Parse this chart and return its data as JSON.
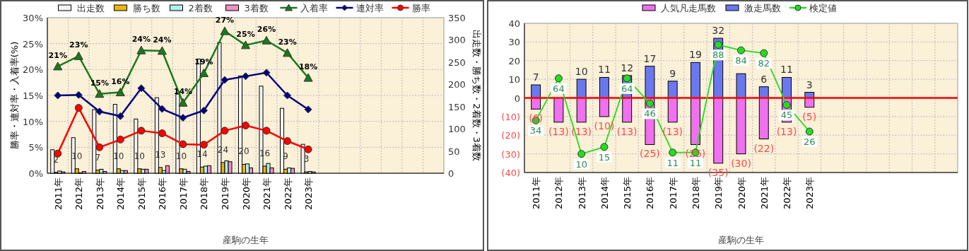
{
  "chart_data": [
    {
      "type": "bar",
      "xlabel": "産駒の生年",
      "ylabel": "勝率・連対率・入着率(%)",
      "y2label": "出走数・勝ち数・2着数・3着数",
      "categories": [
        "2011年",
        "2012年",
        "2013年",
        "2014年",
        "2015年",
        "2016年",
        "2017年",
        "2018年",
        "2019年",
        "2020年",
        "2021年",
        "2022年",
        "2023年",
        null,
        null,
        null,
        null,
        null,
        null
      ],
      "series": [
        {
          "name": "出走数",
          "axis": "y2",
          "color": "#f4f4f4",
          "values": [
            53,
            80,
            143,
            155,
            122,
            170,
            178,
            257,
            294,
            219,
            196,
            146,
            65,
            null,
            null,
            null,
            null,
            null,
            null
          ]
        },
        {
          "name": "勝ち数",
          "axis": "y2",
          "color": "#f0b400",
          "values": [
            2,
            10,
            7,
            10,
            10,
            13,
            10,
            14,
            24,
            20,
            16,
            9,
            3,
            null,
            null,
            null,
            null,
            null,
            null
          ],
          "value_labels": [
            "2",
            "10",
            "7",
            "10",
            "10",
            "13",
            "10",
            "14",
            "24",
            "20",
            "16",
            "9",
            "3",
            null,
            null,
            null,
            null,
            null,
            null
          ]
        },
        {
          "name": "2着数",
          "axis": "y2",
          "color": "#b0f0f0",
          "values": [
            5,
            1,
            9,
            6,
            9,
            6,
            9,
            16,
            28,
            21,
            22,
            12,
            4,
            null,
            null,
            null,
            null,
            null,
            null
          ]
        },
        {
          "name": "3着数",
          "axis": "y2",
          "color": "#f090c0",
          "values": [
            3,
            4,
            4,
            6,
            9,
            17,
            4,
            17,
            26,
            12,
            12,
            11,
            3,
            null,
            null,
            null,
            null,
            null,
            null
          ]
        },
        {
          "name": "入着率",
          "type": "line",
          "color": "#1a7a1a",
          "marker": "triangle",
          "values": [
            20.6,
            22.6,
            15.3,
            15.6,
            23.7,
            23.6,
            13.6,
            19.3,
            27.4,
            24.7,
            25.6,
            23.2,
            18.4,
            null,
            null,
            null,
            null,
            null,
            null
          ],
          "value_labels": [
            "21%",
            "23%",
            "15%",
            "16%",
            "24%",
            "24%",
            "14%",
            "19%",
            "27%",
            "25%",
            "26%",
            "23%",
            "18%",
            null,
            null,
            null,
            null,
            null,
            null
          ]
        },
        {
          "name": "連対率",
          "type": "line",
          "color": "#000080",
          "marker": "diamond",
          "values": [
            15.0,
            15.1,
            11.9,
            11.0,
            16.4,
            12.4,
            10.7,
            12.1,
            18.0,
            18.7,
            19.4,
            15.0,
            12.3,
            null,
            null,
            null,
            null,
            null,
            null
          ]
        },
        {
          "name": "勝率",
          "type": "line",
          "color": "#ff0000",
          "marker": "circle",
          "values": [
            3.8,
            12.6,
            5.0,
            6.5,
            8.2,
            7.7,
            5.6,
            5.5,
            8.2,
            9.2,
            8.2,
            6.2,
            4.6,
            null,
            null,
            null,
            null,
            null,
            null
          ]
        }
      ],
      "ylim": [
        0,
        30
      ],
      "yticks": [
        {
          "value": 0,
          "label": "0%"
        },
        {
          "value": 5,
          "label": "5%"
        },
        {
          "value": 10,
          "label": "10%"
        },
        {
          "value": 15,
          "label": "15%"
        },
        {
          "value": 20,
          "label": "20%"
        },
        {
          "value": 25,
          "label": "25%"
        },
        {
          "value": 30,
          "label": "30%"
        }
      ],
      "y2lim": [
        0,
        350
      ],
      "y2ticks": [
        0,
        50,
        100,
        150,
        200,
        250,
        300,
        350
      ],
      "grid": true,
      "legend": "top"
    },
    {
      "type": "bar",
      "stacked": true,
      "xlabel": "産駒の生年",
      "categories": [
        "2011年",
        "2012年",
        "2013年",
        "2014年",
        "2015年",
        "2016年",
        "2017年",
        "2018年",
        "2019年",
        "2020年",
        "2021年",
        "2022年",
        "2023年",
        null,
        null,
        null,
        null,
        null,
        null
      ],
      "series": [
        {
          "name": "人気凡走馬数",
          "color": "#f070f0",
          "values": [
            -6,
            -13,
            -13,
            -10,
            -13,
            -25,
            -13,
            -25,
            -35,
            -30,
            -22,
            -13,
            -5,
            null,
            null,
            null,
            null,
            null,
            null
          ],
          "value_labels": [
            "(6)",
            "(13)",
            "(13)",
            "(10)",
            "(13)",
            "(25)",
            "(13)",
            "(25)",
            "(35)",
            "(30)",
            "(22)",
            "(13)",
            "(5)",
            null,
            null,
            null,
            null,
            null,
            null
          ]
        },
        {
          "name": "激走馬数",
          "color": "#6a78f0",
          "values": [
            7,
            null,
            10,
            11,
            12,
            17,
            9,
            19,
            32,
            13,
            6,
            11,
            3,
            null,
            null,
            null,
            null,
            null,
            null
          ],
          "value_labels": [
            "7",
            null,
            "10",
            "11",
            "12",
            "17",
            "9",
            "19",
            "32",
            null,
            "6",
            "11",
            "3",
            null,
            null,
            null,
            null,
            null,
            null
          ]
        },
        {
          "name": "検定値",
          "type": "line",
          "axis": "y2",
          "color": "#22dd22",
          "marker": "circle",
          "values": [
            34,
            64,
            10,
            15,
            64,
            46,
            11,
            11,
            88,
            84,
            82,
            45,
            26,
            null,
            null,
            null,
            null,
            null,
            null
          ],
          "value_labels": [
            "34",
            "64",
            "10",
            "15",
            "64",
            "46",
            "11",
            "11",
            "88",
            "84",
            "82",
            "45",
            "26",
            null,
            null,
            null,
            null,
            null,
            null
          ]
        }
      ],
      "ylim": [
        -40,
        40
      ],
      "yticks": [
        {
          "value": -40,
          "label": "(40)"
        },
        {
          "value": -30,
          "label": "(30)"
        },
        {
          "value": -20,
          "label": "(20)"
        },
        {
          "value": -10,
          "label": "(10)"
        },
        0,
        10,
        20,
        30,
        40
      ],
      "y2lim": [
        -3.3,
        103.3
      ],
      "ref_lines": [
        {
          "axis": "y",
          "value": 0,
          "color": "#ff0000"
        }
      ],
      "grid": true,
      "legend": "top"
    }
  ]
}
